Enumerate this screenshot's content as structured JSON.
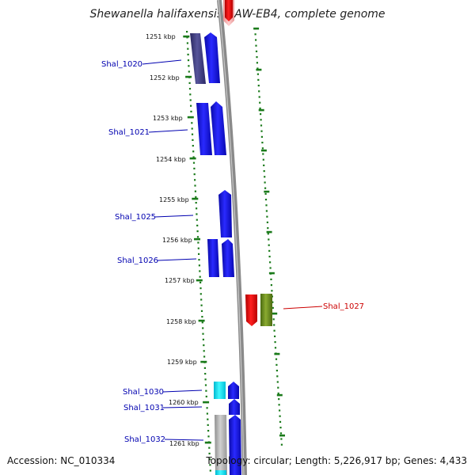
{
  "title": "Shewanella halifaxensis HAW-EB4, complete genome",
  "footer": {
    "accession": "Accession: NC_010334",
    "summary": "Topology: circular; Length: 5,226,917 bp; Genes: 4,433"
  },
  "colors": {
    "blue": "#1010ee",
    "navy": "#3c3a80",
    "red": "#e00000",
    "olive": "#6a8a20",
    "cyan": "#00e0f0",
    "gray": "#b0b0b0",
    "pink": "#f4b0b0",
    "tick_green": "#1a7a1a",
    "backbone": "#8a8a8a",
    "label_blue": "#0000b0",
    "label_red": "#cc0000"
  },
  "scale": {
    "ticks": [
      {
        "label": "1251 kbp"
      },
      {
        "label": "1252 kbp"
      },
      {
        "label": "1253 kbp"
      },
      {
        "label": "1254 kbp"
      },
      {
        "label": "1255 kbp"
      },
      {
        "label": "1256 kbp"
      },
      {
        "label": "1257 kbp"
      },
      {
        "label": "1258 kbp"
      },
      {
        "label": "1259 kbp"
      },
      {
        "label": "1260 kbp"
      },
      {
        "label": "1261 kbp"
      }
    ]
  },
  "genes": [
    {
      "label": "Shal_1020"
    },
    {
      "label": "Shal_1021"
    },
    {
      "label": "Shal_1025"
    },
    {
      "label": "Shal_1026"
    },
    {
      "label": "Shal_1027"
    },
    {
      "label": "Shal_1030"
    },
    {
      "label": "Shal_1031"
    },
    {
      "label": "Shal_1032"
    }
  ]
}
